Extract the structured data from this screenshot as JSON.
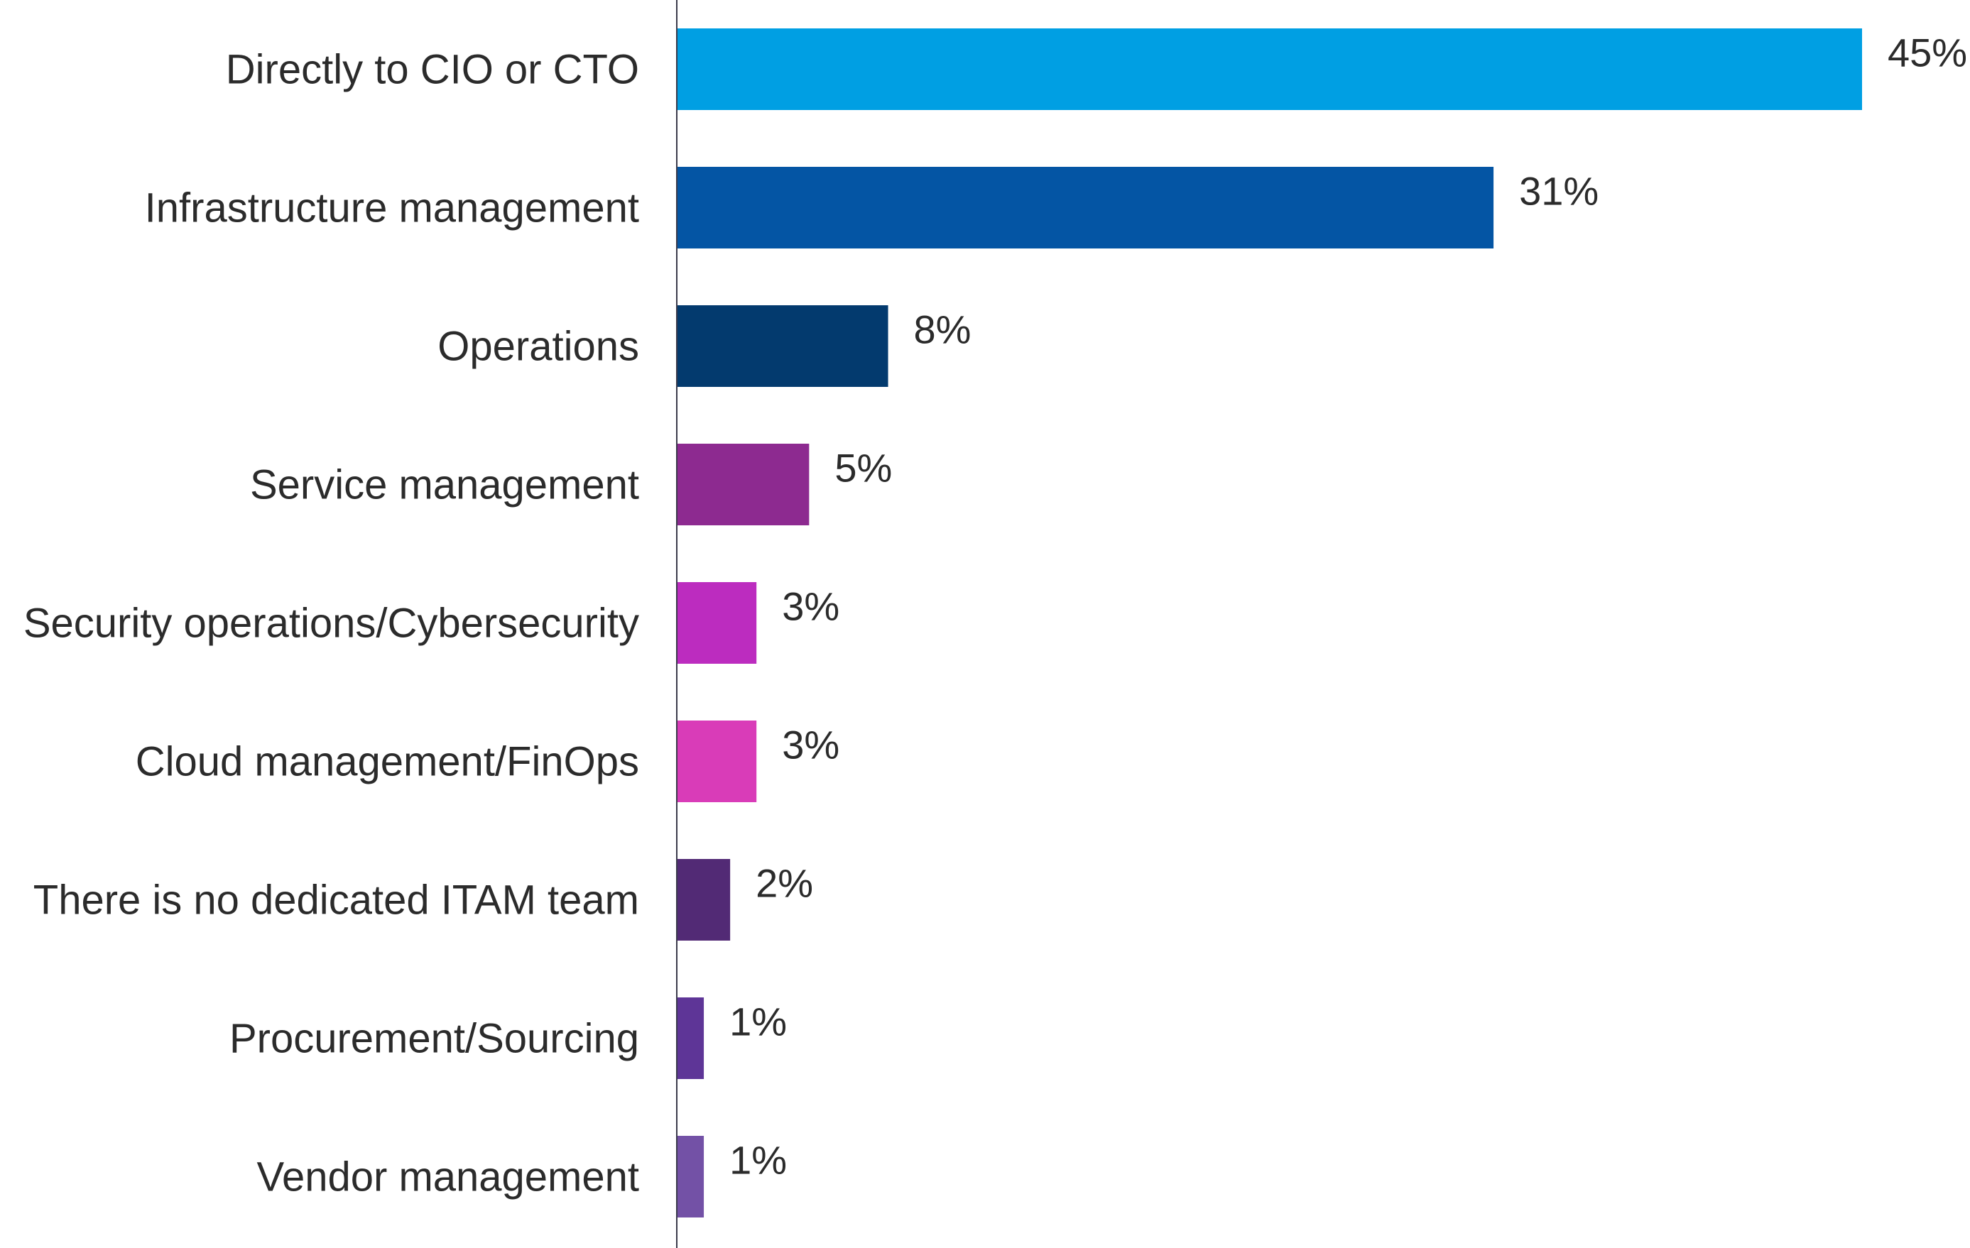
{
  "chart_data": {
    "type": "bar",
    "orientation": "horizontal",
    "title": "",
    "xlabel": "",
    "ylabel": "",
    "xlim": [
      0,
      45
    ],
    "grid": false,
    "legend": "none",
    "categories": [
      "Directly to CIO or CTO",
      "Infrastructure management",
      "Operations",
      "Service management",
      "Security operations/Cybersecurity",
      "Cloud management/FinOps",
      "There is no dedicated ITAM team",
      "Procurement/Sourcing",
      "Vendor management"
    ],
    "values": [
      45,
      31,
      8,
      5,
      3,
      3,
      2,
      1,
      1
    ],
    "value_labels": [
      "45%",
      "31%",
      "8%",
      "5%",
      "3%",
      "3%",
      "2%",
      "1%",
      "1%"
    ],
    "colors": [
      "#009FE3",
      "#0455A4",
      "#033A6E",
      "#8D2A90",
      "#BC2CBF",
      "#D93CB8",
      "#522A75",
      "#5E3597",
      "#7351A6"
    ]
  }
}
